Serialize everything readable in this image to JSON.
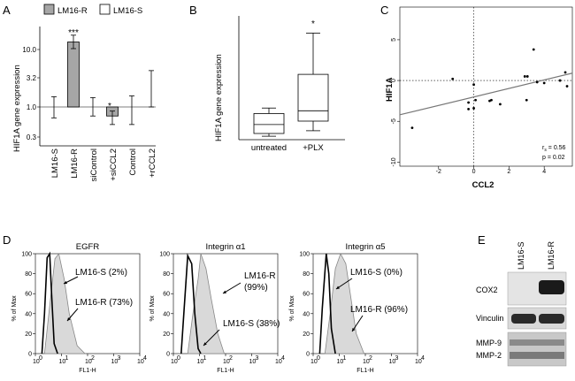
{
  "panels": {
    "A": {
      "letter": "A",
      "legend": [
        "LM16-R",
        "LM16-S"
      ],
      "ylabel": "HIF1A gene expression",
      "yticks": [
        "10.0",
        "3.2",
        "1.0",
        "0.3"
      ],
      "significance": [
        "***",
        "*"
      ]
    },
    "B": {
      "letter": "B",
      "ylabel": "HIF1A gene expression",
      "significance": "*"
    },
    "C": {
      "letter": "C",
      "xlabel": "CCL2",
      "ylabel": "HIF1A",
      "xticks": [
        "-2",
        "0",
        "2",
        "4"
      ],
      "yticks": [
        "5",
        "0",
        "-5",
        "-10"
      ],
      "stat_r": "r",
      "stat_r_sub": "s",
      "stat_r_value": " = 0.56",
      "stat_p": "p = 0.02"
    },
    "D": {
      "letter": "D",
      "ylabel": "% of Max",
      "xlabel": "FL1-H",
      "yticks": [
        "100",
        "80",
        "60",
        "40",
        "20",
        "0"
      ],
      "xticks": [
        "10",
        "10",
        "10",
        "10",
        "10"
      ],
      "xtick_exps": [
        "0",
        "1",
        "2",
        "3",
        "4"
      ],
      "subpanels": [
        {
          "title": "EGFR",
          "label1": "LM16-S (2%)",
          "label2": "LM16-R (73%)"
        },
        {
          "title": "Integrin α1",
          "label1": "LM16-R",
          "label1b": "(99%)",
          "label2": "LM16-S (38%)"
        },
        {
          "title": "Integrin α5",
          "label1": "LM16-S (0%)",
          "label2": "LM16-R (96%)"
        }
      ]
    },
    "E": {
      "letter": "E",
      "lanes": [
        "LM16-S",
        "LM16-R"
      ],
      "rows": [
        "COX2",
        "Vinculin",
        "MMP-9",
        "MMP-2"
      ]
    }
  },
  "chart_data": [
    {
      "type": "bar",
      "panel": "A",
      "categories": [
        "LM16-S",
        "LM16-R",
        "siControl",
        "+siCCL2",
        "Control",
        "+rCCL2"
      ],
      "values": [
        1.0,
        13.0,
        1.0,
        0.7,
        1.0,
        1.7
      ],
      "error_low": [
        0.65,
        10.0,
        0.7,
        0.5,
        0.5,
        1.0
      ],
      "error_high": [
        1.5,
        17.0,
        1.45,
        0.85,
        1.55,
        4.2
      ],
      "fill": [
        "none",
        "gray",
        "none",
        "gray",
        "none",
        "none"
      ],
      "yscale": "log",
      "ylim": [
        0.2,
        30
      ],
      "ylabel": "HIF1A gene expression",
      "legend": [
        "LM16-R",
        "LM16-S"
      ],
      "colors": {
        "LM16-R": "#a6a6a6",
        "LM16-S": "#ffffff"
      }
    },
    {
      "type": "box",
      "panel": "B",
      "categories": [
        "untreated",
        "+PLX"
      ],
      "whisker_low": [
        0.5,
        1.3
      ],
      "q1": [
        0.9,
        2.7
      ],
      "median": [
        2.2,
        4.2
      ],
      "q3": [
        3.8,
        9.5
      ],
      "whisker_high": [
        4.6,
        15.5
      ],
      "ylim": [
        0,
        18
      ],
      "ylabel": "HIF1A gene expression"
    },
    {
      "type": "scatter",
      "panel": "C",
      "xlabel": "CCL2",
      "ylabel": "HIF1A",
      "x": [
        -3.5,
        -1.2,
        -0.3,
        -0.3,
        0.0,
        0.0,
        0.1,
        0.9,
        1.0,
        1.5,
        2.9,
        3.0,
        3.05,
        3.4,
        3.6,
        4.0,
        4.9,
        5.2,
        5.3
      ],
      "y": [
        -5.8,
        0.2,
        -2.7,
        -3.5,
        -3.4,
        -0.5,
        -2.4,
        -2.5,
        -2.4,
        -2.9,
        0.5,
        -2.4,
        0.5,
        3.8,
        -0.2,
        -0.3,
        0.0,
        1.0,
        -0.7
      ],
      "trendline": {
        "x": [
          -4.2,
          5.6
        ],
        "y": [
          -4.2,
          0.9
        ]
      },
      "xlim": [
        -4.2,
        5.6
      ],
      "ylim": [
        -10.5,
        9
      ],
      "reference_lines": {
        "x": 0,
        "y": 0
      }
    },
    {
      "type": "histogram",
      "panel": "D",
      "xscale": "log",
      "xlim": [
        1,
        10000
      ],
      "ylim": [
        0,
        100
      ],
      "xlabel": "FL1-H",
      "ylabel": "% of Max",
      "subpanels": [
        "EGFR",
        "Integrin α1",
        "Integrin α5"
      ]
    }
  ]
}
